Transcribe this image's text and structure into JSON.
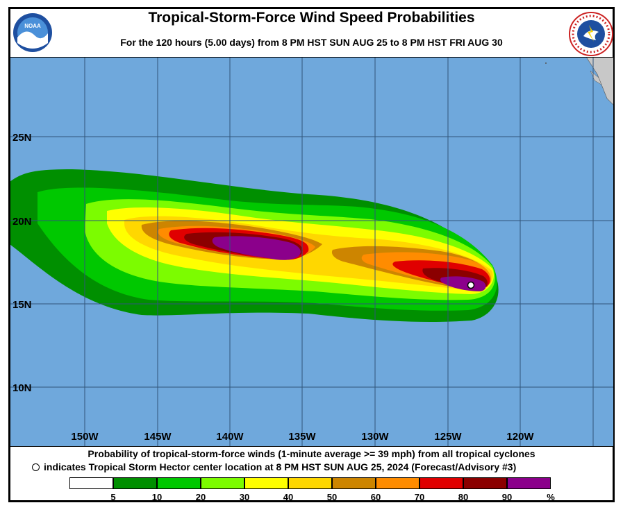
{
  "title": "Tropical-Storm-Force Wind Speed Probabilities",
  "subtitle": "For the 120 hours (5.00 days) from 8 PM HST SUN AUG 25 to 8 PM HST FRI AUG 30",
  "logos": {
    "left": "NOAA",
    "right": "NATIONAL WEATHER SERVICE"
  },
  "map": {
    "latitudes": [
      "25N",
      "20N",
      "15N",
      "10N"
    ],
    "longitudes": [
      "150W",
      "145W",
      "140W",
      "135W",
      "130W",
      "125W",
      "120W"
    ],
    "storm_center": {
      "name": "Tropical Storm Hector",
      "lat": 16.3,
      "lon": -123.3
    }
  },
  "footer": {
    "line1": "Probability of tropical-storm-force winds (1-minute average >= 39 mph) from all tropical cyclones",
    "line2": "indicates Tropical Storm Hector center location at 8 PM HST SUN AUG 25, 2024 (Forecast/Advisory #3)"
  },
  "legend": {
    "colors": [
      "#ffffff",
      "#008f00",
      "#00c800",
      "#7cfc00",
      "#ffff00",
      "#ffd700",
      "#cd8500",
      "#ff8c00",
      "#e00000",
      "#8b0000",
      "#8b008b"
    ],
    "labels": [
      "5",
      "10",
      "20",
      "30",
      "40",
      "50",
      "60",
      "70",
      "80",
      "90",
      "%"
    ]
  },
  "colors": {
    "ocean": "#6fa8dc",
    "land": "#c8c8c8",
    "grid": "#30557a"
  }
}
